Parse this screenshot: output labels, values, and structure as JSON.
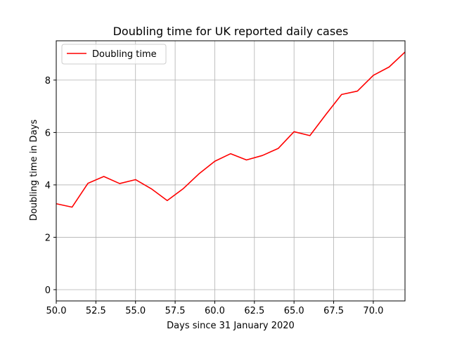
{
  "chart_data": {
    "type": "line",
    "title": "Doubling time for UK reported daily cases",
    "xlabel": "Days since 31 January 2020",
    "ylabel": "Doubling time in Days",
    "xlim": [
      50,
      72
    ],
    "ylim": [
      -0.43,
      9.5
    ],
    "xticks": [
      50.0,
      52.5,
      55.0,
      57.5,
      60.0,
      62.5,
      65.0,
      67.5,
      70.0
    ],
    "xtick_labels": [
      "50.0",
      "52.5",
      "55.0",
      "57.5",
      "60.0",
      "62.5",
      "65.0",
      "67.5",
      "70.0"
    ],
    "yticks": [
      0,
      2,
      4,
      6,
      8
    ],
    "ytick_labels": [
      "0",
      "2",
      "4",
      "6",
      "8"
    ],
    "grid": true,
    "legend": {
      "position": "upper left"
    },
    "series": [
      {
        "name": "Doubling time",
        "color": "#ff0000",
        "x": [
          50,
          51,
          52,
          53,
          54,
          55,
          56,
          57,
          58,
          59,
          60,
          61,
          62,
          63,
          64,
          65,
          66,
          67,
          68,
          69,
          70,
          71,
          72
        ],
        "y": [
          3.28,
          3.15,
          4.06,
          4.32,
          4.05,
          4.2,
          3.85,
          3.4,
          3.85,
          4.42,
          4.9,
          5.19,
          4.95,
          5.12,
          5.39,
          6.03,
          5.88,
          6.68,
          7.45,
          7.58,
          8.18,
          8.5,
          9.07
        ]
      }
    ]
  }
}
